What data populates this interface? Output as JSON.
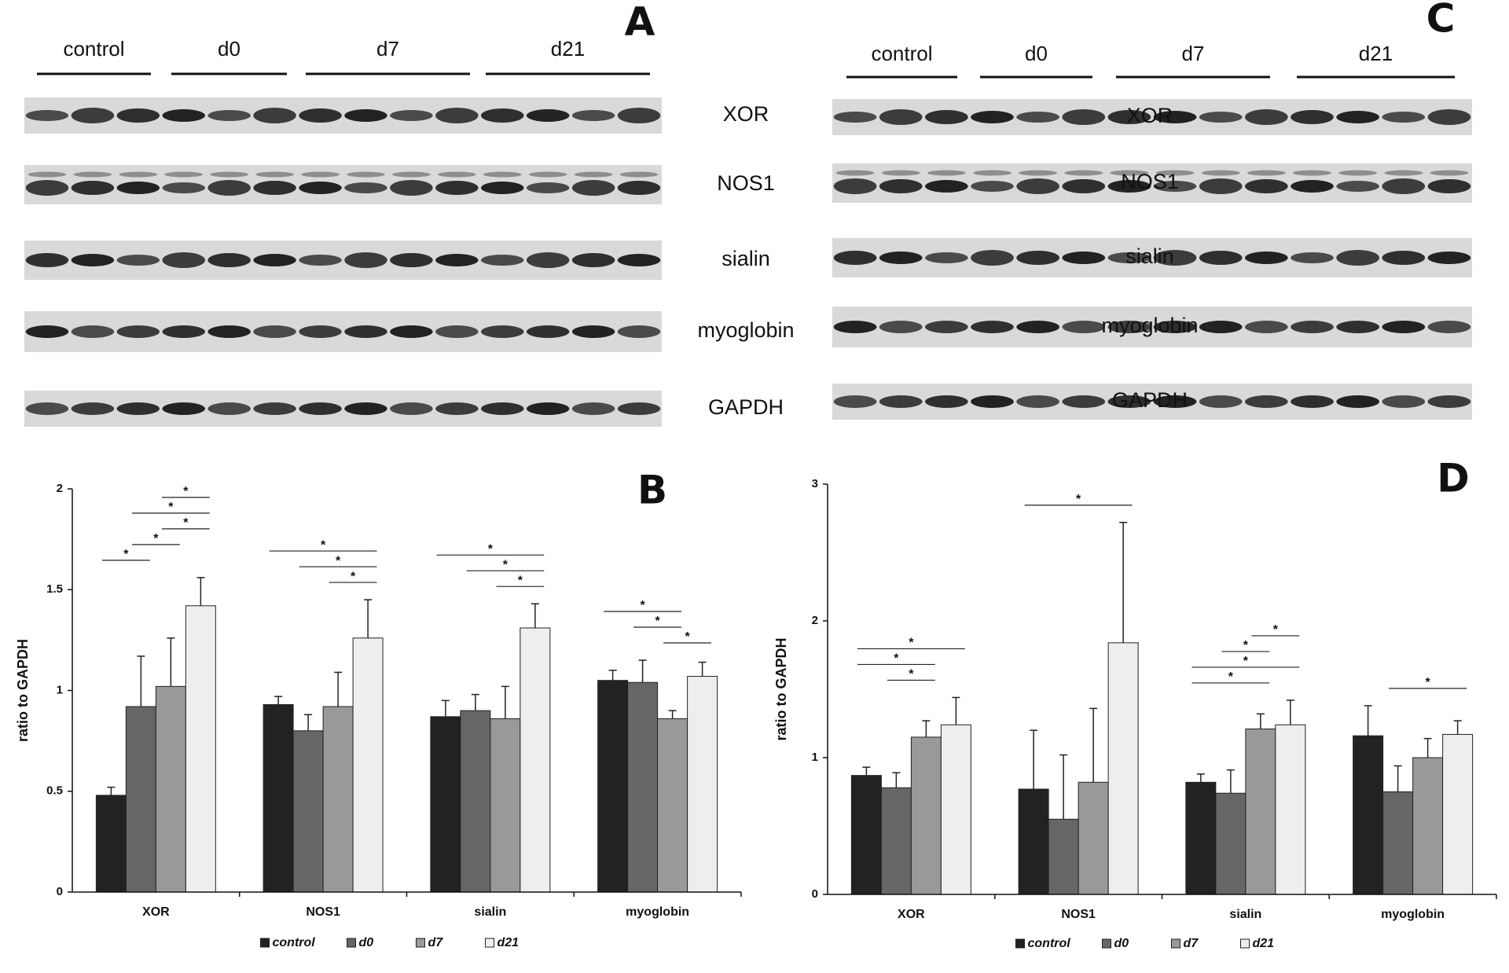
{
  "blots": [
    {
      "panel_label": "A",
      "groups": [
        "control",
        "d0",
        "d7",
        "d21"
      ],
      "rows": [
        "XOR",
        "NOS1",
        "sialin",
        "myoglobin",
        "GAPDH"
      ]
    },
    {
      "panel_label": "C",
      "groups": [
        "control",
        "d0",
        "d7",
        "d21"
      ],
      "rows": [
        "XOR",
        "NOS1",
        "sialin",
        "myoglobin",
        "GAPDH"
      ]
    }
  ],
  "chart_data": [
    {
      "type": "bar",
      "panel_label": "B",
      "y_label": "ratio to GAPDH",
      "categories": [
        "XOR",
        "NOS1",
        "sialin",
        "myoglobin"
      ],
      "series": [
        {
          "name": "control",
          "color": "#222222",
          "values": [
            0.48,
            0.93,
            0.87,
            1.05
          ],
          "errors": [
            0.04,
            0.04,
            0.08,
            0.05
          ]
        },
        {
          "name": "d0",
          "color": "#666666",
          "values": [
            0.92,
            0.8,
            0.9,
            1.04
          ],
          "errors": [
            0.25,
            0.08,
            0.08,
            0.11
          ]
        },
        {
          "name": "d7",
          "color": "#999999",
          "values": [
            1.02,
            0.92,
            0.86,
            0.86
          ],
          "errors": [
            0.24,
            0.17,
            0.16,
            0.04
          ]
        },
        {
          "name": "d21",
          "color": "#eeeeee",
          "values": [
            1.42,
            1.26,
            1.31,
            1.07
          ],
          "errors": [
            0.14,
            0.19,
            0.12,
            0.07
          ]
        }
      ],
      "ylim": [
        0,
        2
      ],
      "yticks": [
        0,
        0.5,
        1,
        1.5,
        2
      ],
      "legend": "bottom",
      "significance": [
        {
          "category": "XOR",
          "between": [
            "control",
            "d0"
          ],
          "label": "*"
        },
        {
          "category": "XOR",
          "between": [
            "d0",
            "d7"
          ],
          "label": "*"
        },
        {
          "category": "XOR",
          "between": [
            "d7",
            "d21"
          ],
          "label": "*"
        },
        {
          "category": "XOR",
          "between": [
            "d0",
            "d21"
          ],
          "label": "*"
        },
        {
          "category": "XOR",
          "between": [
            "d7",
            "d21"
          ],
          "label": "*"
        },
        {
          "category": "NOS1",
          "between": [
            "d7",
            "d21"
          ],
          "label": "*"
        },
        {
          "category": "NOS1",
          "between": [
            "d0",
            "d21"
          ],
          "label": "*"
        },
        {
          "category": "NOS1",
          "between": [
            "control",
            "d21"
          ],
          "label": "*"
        },
        {
          "category": "sialin",
          "between": [
            "d7",
            "d21"
          ],
          "label": "*"
        },
        {
          "category": "sialin",
          "between": [
            "d0",
            "d21"
          ],
          "label": "*"
        },
        {
          "category": "sialin",
          "between": [
            "control",
            "d21"
          ],
          "label": "*"
        },
        {
          "category": "myoglobin",
          "between": [
            "d7",
            "d21"
          ],
          "label": "*"
        },
        {
          "category": "myoglobin",
          "between": [
            "d0",
            "d7"
          ],
          "label": "*"
        },
        {
          "category": "myoglobin",
          "between": [
            "control",
            "d7"
          ],
          "label": "*"
        }
      ]
    },
    {
      "type": "bar",
      "panel_label": "D",
      "y_label": "ratio to GAPDH",
      "categories": [
        "XOR",
        "NOS1",
        "sialin",
        "myoglobin"
      ],
      "series": [
        {
          "name": "control",
          "color": "#222222",
          "values": [
            0.87,
            0.77,
            0.82,
            1.16
          ],
          "errors": [
            0.06,
            0.43,
            0.06,
            0.22
          ]
        },
        {
          "name": "d0",
          "color": "#666666",
          "values": [
            0.78,
            0.55,
            0.74,
            0.75
          ],
          "errors": [
            0.11,
            0.47,
            0.17,
            0.19
          ]
        },
        {
          "name": "d7",
          "color": "#999999",
          "values": [
            1.15,
            0.82,
            1.21,
            1.0
          ],
          "errors": [
            0.12,
            0.54,
            0.11,
            0.14
          ]
        },
        {
          "name": "d21",
          "color": "#eeeeee",
          "values": [
            1.24,
            1.84,
            1.24,
            1.17
          ],
          "errors": [
            0.2,
            0.88,
            0.18,
            0.1
          ]
        }
      ],
      "ylim": [
        0,
        3
      ],
      "yticks": [
        0,
        1,
        2,
        3
      ],
      "legend": "bottom",
      "significance": [
        {
          "category": "XOR",
          "between": [
            "d0",
            "d7"
          ],
          "label": "*"
        },
        {
          "category": "XOR",
          "between": [
            "control",
            "d7"
          ],
          "label": "*"
        },
        {
          "category": "XOR",
          "between": [
            "control",
            "d21"
          ],
          "label": "*"
        },
        {
          "category": "NOS1",
          "between": [
            "control",
            "d21"
          ],
          "label": "*"
        },
        {
          "category": "sialin",
          "between": [
            "control",
            "d7"
          ],
          "label": "*"
        },
        {
          "category": "sialin",
          "between": [
            "control",
            "d21"
          ],
          "label": "*"
        },
        {
          "category": "sialin",
          "between": [
            "d0",
            "d7"
          ],
          "label": "*"
        },
        {
          "category": "sialin",
          "between": [
            "d7",
            "d21"
          ],
          "label": "*"
        },
        {
          "category": "myoglobin",
          "between": [
            "d0",
            "d21"
          ],
          "label": "*"
        }
      ]
    }
  ]
}
